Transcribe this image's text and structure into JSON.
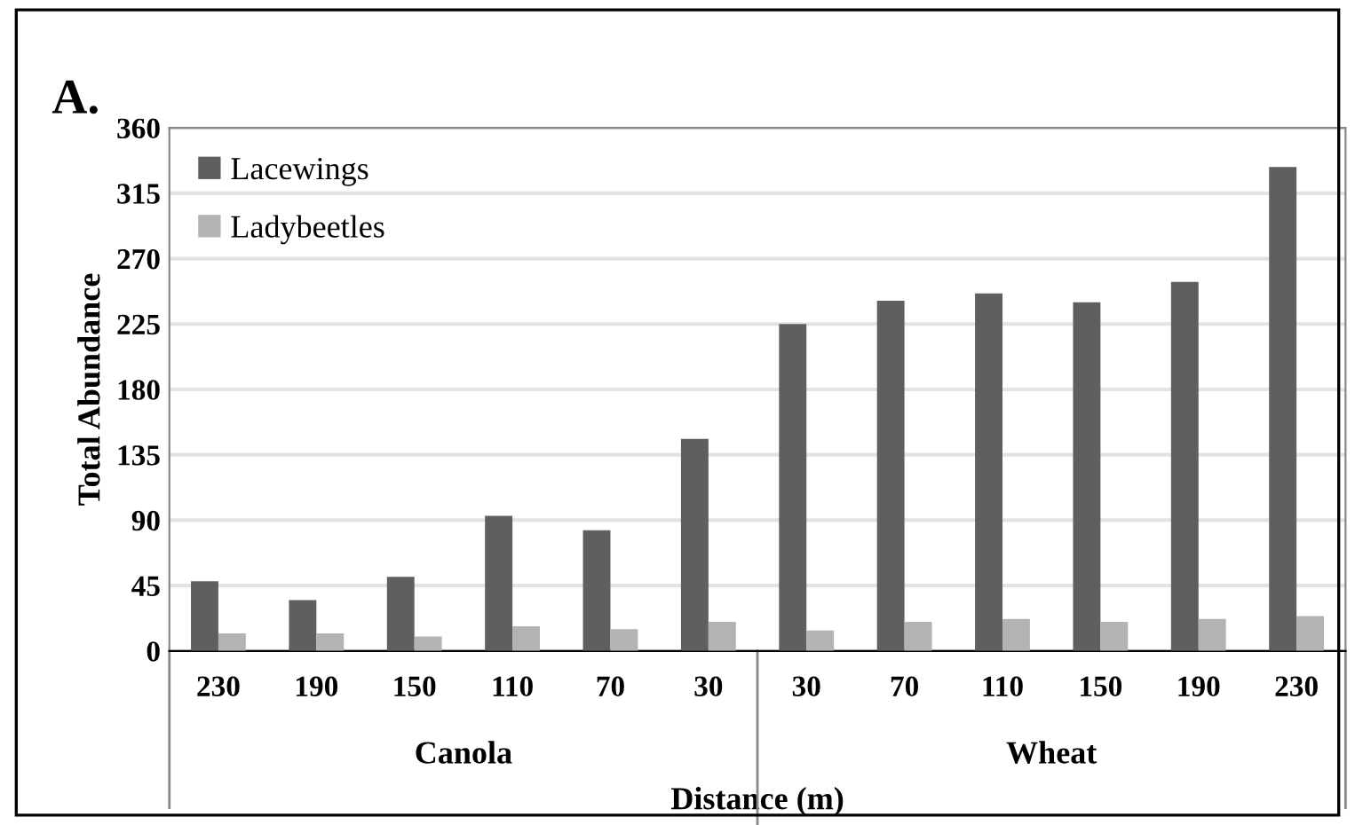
{
  "chart_data": {
    "type": "bar",
    "title": "A.",
    "xlabel": "Distance (m)",
    "ylabel": "Total Abundance",
    "categories": [
      "230",
      "190",
      "150",
      "110",
      "70",
      "30",
      "30",
      "70",
      "110",
      "150",
      "190",
      "230"
    ],
    "series": [
      {
        "name": "Lacewings",
        "color": "#5f5f5f",
        "values": [
          48,
          35,
          51,
          93,
          83,
          146,
          225,
          241,
          246,
          240,
          254,
          333
        ]
      },
      {
        "name": "Ladybeetles",
        "color": "#b3b3b3",
        "values": [
          12,
          12,
          10,
          17,
          15,
          20,
          14,
          20,
          22,
          20,
          22,
          24
        ]
      }
    ],
    "ylim": [
      0,
      360
    ],
    "yticks": [
      0,
      45,
      90,
      135,
      180,
      225,
      270,
      315,
      360
    ],
    "grid": "y",
    "legend": "top left",
    "annotations": [
      "Canola",
      "Wheat"
    ]
  }
}
